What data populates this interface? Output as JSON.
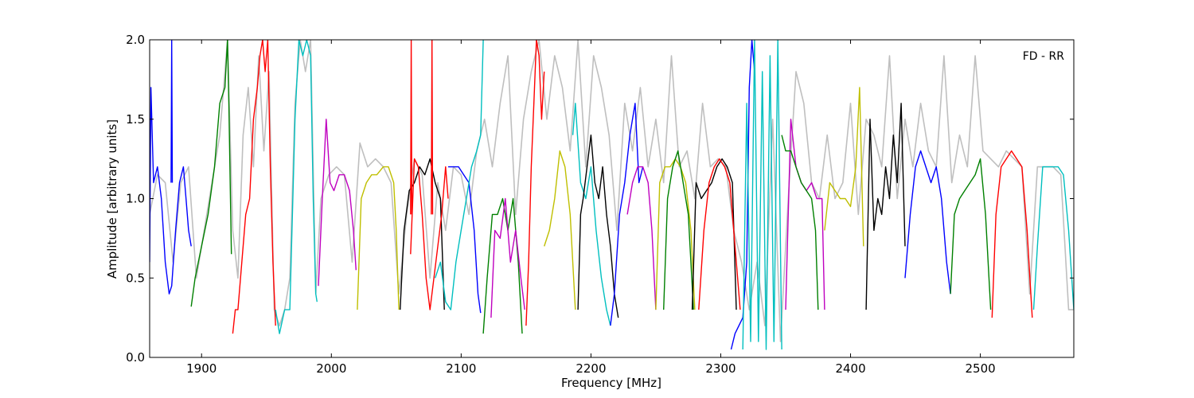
{
  "chart_data": {
    "type": "line",
    "title": "",
    "annotation": "FD - RR",
    "xlabel": "Frequency [MHz]",
    "ylabel": "Amplitude [arbitrary units]",
    "xlim": [
      1860,
      2572
    ],
    "ylim": [
      0.0,
      2.0
    ],
    "grid": false,
    "x_ticks": [
      1900,
      2000,
      2100,
      2200,
      2300,
      2400,
      2500
    ],
    "y_ticks": [
      0.0,
      0.5,
      1.0,
      1.5,
      2.0
    ],
    "x_tick_labels": [
      "1900",
      "2000",
      "2100",
      "2200",
      "2300",
      "2400",
      "2500"
    ],
    "y_tick_labels": [
      "0.0",
      "0.5",
      "1.0",
      "1.5",
      "2.0"
    ],
    "background_series": {
      "color": "#bfbfbf",
      "x": [
        1860,
        1866,
        1872,
        1878,
        1884,
        1890,
        1896,
        1902,
        1908,
        1914,
        1920,
        1924,
        1928,
        1932,
        1936,
        1940,
        1944,
        1948,
        1952,
        1956,
        1960,
        1964,
        1968,
        1972,
        1976,
        1980,
        1984,
        1988,
        1992,
        1998,
        2004,
        2010,
        2016,
        2022,
        2028,
        2034,
        2040,
        2046,
        2052,
        2058,
        2064,
        2070,
        2076,
        2082,
        2088,
        2094,
        2100,
        2106,
        2112,
        2118,
        2124,
        2130,
        2136,
        2142,
        2148,
        2154,
        2160,
        2166,
        2172,
        2178,
        2184,
        2190,
        2196,
        2202,
        2208,
        2214,
        2220,
        2226,
        2232,
        2238,
        2244,
        2250,
        2256,
        2262,
        2268,
        2274,
        2280,
        2286,
        2292,
        2298,
        2304,
        2310,
        2316,
        2322,
        2328,
        2334,
        2340,
        2346,
        2352,
        2358,
        2364,
        2370,
        2376,
        2382,
        2388,
        2394,
        2400,
        2406,
        2412,
        2418,
        2424,
        2430,
        2436,
        2442,
        2448,
        2454,
        2460,
        2466,
        2472,
        2478,
        2484,
        2490,
        2496,
        2502,
        2508,
        2514,
        2520,
        2526,
        2532,
        2538,
        2544,
        2550,
        2556,
        2562,
        2568,
        2572
      ],
      "y": [
        0.9,
        1.15,
        1.1,
        0.6,
        1.1,
        1.2,
        0.5,
        0.8,
        1.1,
        1.4,
        2.0,
        0.8,
        0.5,
        1.4,
        1.7,
        1.2,
        1.9,
        1.3,
        1.8,
        0.3,
        0.2,
        0.3,
        0.5,
        1.6,
        2.0,
        1.8,
        2.0,
        0.4,
        1.0,
        1.15,
        1.2,
        1.15,
        0.6,
        1.35,
        1.2,
        1.25,
        1.2,
        1.1,
        0.4,
        0.9,
        1.25,
        1.15,
        0.5,
        1.1,
        0.8,
        1.2,
        1.15,
        0.9,
        1.3,
        1.5,
        1.2,
        1.6,
        1.9,
        0.9,
        1.5,
        1.8,
        2.0,
        1.5,
        1.9,
        1.7,
        1.3,
        2.0,
        1.2,
        1.9,
        1.7,
        1.4,
        0.8,
        1.6,
        1.3,
        1.7,
        1.2,
        1.5,
        1.1,
        1.9,
        1.2,
        1.3,
        1.0,
        1.6,
        1.2,
        1.25,
        1.2,
        0.8,
        0.6,
        0.3,
        0.6,
        0.2,
        1.5,
        0.1,
        1.0,
        1.8,
        1.6,
        1.1,
        1.0,
        1.4,
        1.0,
        1.1,
        1.6,
        0.9,
        1.5,
        1.4,
        1.2,
        1.9,
        1.0,
        1.5,
        1.2,
        1.6,
        1.3,
        1.2,
        1.9,
        1.1,
        1.4,
        1.2,
        1.9,
        1.3,
        1.25,
        1.2,
        1.3,
        1.25,
        1.2,
        0.4,
        1.2,
        1.2,
        1.2,
        1.15,
        0.3,
        0.3
      ]
    },
    "series": [
      {
        "color": "#0000ff",
        "x": [
          1860,
          1861,
          1863,
          1866,
          1869,
          1872,
          1875,
          1877,
          1880,
          1883,
          1886,
          1888,
          1890,
          1892
        ],
        "y": [
          0.6,
          1.7,
          1.1,
          1.2,
          1.0,
          0.6,
          0.4,
          0.45,
          0.8,
          1.1,
          1.2,
          1.0,
          0.8,
          0.7
        ]
      },
      {
        "color": "#0000ff",
        "x": [
          1876.5,
          1877,
          1877.5
        ],
        "y": [
          1.1,
          2.0,
          1.1
        ]
      },
      {
        "color": "#008000",
        "x": [
          1892,
          1895,
          1900,
          1905,
          1910,
          1914,
          1918,
          1920,
          1921,
          1923
        ],
        "y": [
          0.32,
          0.5,
          0.7,
          0.9,
          1.2,
          1.6,
          1.7,
          2.0,
          1.6,
          0.65
        ]
      },
      {
        "color": "#ff0000",
        "x": [
          1924,
          1926,
          1928,
          1931,
          1934,
          1937,
          1940,
          1943,
          1945,
          1947,
          1949,
          1951,
          1953,
          1955,
          1957
        ],
        "y": [
          0.15,
          0.3,
          0.3,
          0.6,
          0.9,
          1.0,
          1.5,
          1.7,
          1.9,
          2.0,
          1.8,
          2.0,
          1.2,
          0.6,
          0.2
        ]
      },
      {
        "color": "#00bfbf",
        "x": [
          1957,
          1960,
          1964,
          1968,
          1972,
          1975,
          1978,
          1981,
          1984,
          1986,
          1988,
          1989
        ],
        "y": [
          0.3,
          0.15,
          0.3,
          0.3,
          1.5,
          2.0,
          1.9,
          2.0,
          1.9,
          1.0,
          0.4,
          0.35
        ]
      },
      {
        "color": "#bf00bf",
        "x": [
          1990,
          1993,
          1996,
          1999,
          2002,
          2006,
          2010,
          2014,
          2017,
          2019
        ],
        "y": [
          0.45,
          1.0,
          1.5,
          1.1,
          1.05,
          1.15,
          1.15,
          1.05,
          0.8,
          0.55
        ]
      },
      {
        "color": "#bfbf00",
        "x": [
          2020,
          2023,
          2027,
          2031,
          2035,
          2040,
          2044,
          2048,
          2050,
          2052
        ],
        "y": [
          0.3,
          1.0,
          1.1,
          1.15,
          1.15,
          1.2,
          1.2,
          1.1,
          0.8,
          0.3
        ]
      },
      {
        "color": "#000000",
        "x": [
          2053,
          2056,
          2060,
          2064,
          2068,
          2072,
          2076,
          2080,
          2084,
          2087
        ],
        "y": [
          0.3,
          0.8,
          1.05,
          1.1,
          1.2,
          1.15,
          1.25,
          1.1,
          1.0,
          0.3
        ]
      },
      {
        "color": "#ff0000",
        "x": [
          2061,
          2064,
          2067,
          2070,
          2073,
          2076,
          2079,
          2082,
          2085,
          2088,
          2090
        ],
        "y": [
          0.65,
          1.25,
          1.2,
          0.9,
          0.5,
          0.3,
          0.5,
          0.7,
          0.9,
          1.2,
          1.0
        ]
      },
      {
        "color": "#ff0000",
        "x": [
          2061,
          2061.5,
          2062
        ],
        "y": [
          0.9,
          2.0,
          0.9
        ]
      },
      {
        "color": "#ff0000",
        "x": [
          2077,
          2077.5,
          2078
        ],
        "y": [
          0.9,
          2.0,
          0.9
        ]
      },
      {
        "color": "#0000ff",
        "x": [
          2090,
          2094,
          2098,
          2102,
          2106,
          2110,
          2113,
          2115
        ],
        "y": [
          1.2,
          1.2,
          1.2,
          1.15,
          1.1,
          0.8,
          0.4,
          0.28
        ]
      },
      {
        "color": "#00bfbf",
        "x": [
          2080,
          2084,
          2088,
          2092,
          2096,
          2100,
          2104,
          2108,
          2112,
          2115,
          2117
        ],
        "y": [
          0.5,
          0.6,
          0.35,
          0.3,
          0.6,
          0.8,
          1.0,
          1.2,
          1.3,
          1.4,
          2.0
        ]
      },
      {
        "color": "#008000",
        "x": [
          2117,
          2120,
          2124,
          2128,
          2132,
          2136,
          2140,
          2144,
          2147
        ],
        "y": [
          0.15,
          0.5,
          0.9,
          0.9,
          1.0,
          0.8,
          1.0,
          0.6,
          0.15
        ]
      },
      {
        "color": "#bf00bf",
        "x": [
          2123,
          2126,
          2130,
          2134,
          2138,
          2142,
          2146,
          2149
        ],
        "y": [
          0.25,
          0.8,
          0.75,
          1.0,
          0.6,
          0.8,
          0.5,
          0.3
        ]
      },
      {
        "color": "#ff0000",
        "x": [
          2150,
          2152,
          2154,
          2156,
          2158,
          2160,
          2162,
          2164
        ],
        "y": [
          0.2,
          0.6,
          1.2,
          1.6,
          2.0,
          1.9,
          1.5,
          1.8
        ]
      },
      {
        "color": "#bfbf00",
        "x": [
          2164,
          2168,
          2172,
          2176,
          2180,
          2184,
          2188
        ],
        "y": [
          0.7,
          0.8,
          1.0,
          1.3,
          1.2,
          0.9,
          0.3
        ]
      },
      {
        "color": "#00bfbf",
        "x": [
          2186,
          2188,
          2192,
          2196,
          2200,
          2204,
          2208,
          2212,
          2215
        ],
        "y": [
          1.4,
          1.6,
          1.1,
          1.0,
          1.2,
          0.8,
          0.5,
          0.3,
          0.2
        ]
      },
      {
        "color": "#000000",
        "x": [
          2190,
          2192,
          2194,
          2197,
          2200,
          2203,
          2206,
          2209,
          2212,
          2215,
          2218,
          2221
        ],
        "y": [
          0.3,
          0.9,
          1.0,
          1.2,
          1.4,
          1.1,
          1.0,
          1.2,
          0.9,
          0.7,
          0.4,
          0.25
        ]
      },
      {
        "color": "#0000ff",
        "x": [
          2215,
          2218,
          2222,
          2226,
          2230,
          2234,
          2237,
          2240
        ],
        "y": [
          0.2,
          0.4,
          0.9,
          1.1,
          1.4,
          1.6,
          1.1,
          1.2
        ]
      },
      {
        "color": "#bf00bf",
        "x": [
          2228,
          2232,
          2236,
          2240,
          2244,
          2247,
          2250
        ],
        "y": [
          0.9,
          1.1,
          1.2,
          1.2,
          1.1,
          0.8,
          0.3
        ]
      },
      {
        "color": "#bfbf00",
        "x": [
          2250,
          2253,
          2257,
          2261,
          2265,
          2269,
          2273,
          2277,
          2280
        ],
        "y": [
          0.3,
          1.1,
          1.2,
          1.2,
          1.25,
          1.2,
          1.1,
          0.8,
          0.3
        ]
      },
      {
        "color": "#008000",
        "x": [
          2256,
          2259,
          2263,
          2267,
          2271,
          2275,
          2279
        ],
        "y": [
          0.3,
          1.0,
          1.2,
          1.3,
          1.1,
          0.9,
          0.3
        ]
      },
      {
        "color": "#000000",
        "x": [
          2278,
          2281,
          2285,
          2289,
          2293,
          2297,
          2301,
          2305,
          2309,
          2312
        ],
        "y": [
          0.3,
          1.1,
          1.0,
          1.05,
          1.1,
          1.2,
          1.25,
          1.2,
          1.1,
          0.3
        ]
      },
      {
        "color": "#ff0000",
        "x": [
          2283,
          2287,
          2291,
          2295,
          2299,
          2303,
          2307,
          2311,
          2315
        ],
        "y": [
          0.3,
          0.8,
          1.1,
          1.2,
          1.25,
          1.2,
          1.1,
          0.7,
          0.3
        ]
      },
      {
        "color": "#0000ff",
        "x": [
          2308,
          2311,
          2314,
          2317,
          2320,
          2322,
          2324,
          2326
        ],
        "y": [
          0.05,
          0.15,
          0.2,
          0.25,
          0.6,
          1.7,
          2.0,
          1.8
        ]
      },
      {
        "color": "#00bfbf",
        "x": [
          2317,
          2320,
          2323,
          2326,
          2329,
          2332,
          2335,
          2338,
          2341,
          2344,
          2347
        ],
        "y": [
          0.05,
          1.6,
          0.1,
          2.0,
          0.1,
          1.8,
          0.05,
          1.9,
          0.1,
          2.0,
          0.05
        ]
      },
      {
        "color": "#bf00bf",
        "x": [
          2350,
          2354,
          2358,
          2362,
          2366,
          2370,
          2374,
          2378,
          2380
        ],
        "y": [
          0.3,
          1.5,
          1.2,
          1.1,
          1.05,
          1.1,
          1.0,
          1.0,
          0.3
        ]
      },
      {
        "color": "#008000",
        "x": [
          2347,
          2350,
          2354,
          2358,
          2362,
          2366,
          2370,
          2373,
          2375
        ],
        "y": [
          1.4,
          1.3,
          1.3,
          1.2,
          1.1,
          1.05,
          1.0,
          0.8,
          0.3
        ]
      },
      {
        "color": "#bfbf00",
        "x": [
          2380,
          2384,
          2388,
          2392,
          2396,
          2400,
          2404,
          2407,
          2410
        ],
        "y": [
          0.8,
          1.1,
          1.05,
          1.0,
          1.0,
          0.95,
          1.2,
          1.7,
          0.7
        ]
      },
      {
        "color": "#000000",
        "x": [
          2412,
          2415,
          2418,
          2421,
          2424,
          2427,
          2430,
          2433,
          2436,
          2439,
          2442
        ],
        "y": [
          0.3,
          1.5,
          0.8,
          1.0,
          0.9,
          1.2,
          1.0,
          1.4,
          1.1,
          1.6,
          0.7
        ]
      },
      {
        "color": "#0000ff",
        "x": [
          2442,
          2446,
          2450,
          2454,
          2458,
          2462,
          2466,
          2470,
          2474,
          2477
        ],
        "y": [
          0.5,
          0.9,
          1.2,
          1.3,
          1.2,
          1.1,
          1.2,
          1.0,
          0.6,
          0.4
        ]
      },
      {
        "color": "#008000",
        "x": [
          2477,
          2480,
          2484,
          2488,
          2492,
          2496,
          2500,
          2504,
          2508
        ],
        "y": [
          0.4,
          0.9,
          1.0,
          1.05,
          1.1,
          1.15,
          1.25,
          0.9,
          0.3
        ]
      },
      {
        "color": "#ff0000",
        "x": [
          2509,
          2512,
          2516,
          2520,
          2524,
          2528,
          2532,
          2536,
          2540
        ],
        "y": [
          0.25,
          0.9,
          1.2,
          1.25,
          1.3,
          1.25,
          1.2,
          0.8,
          0.25
        ]
      },
      {
        "color": "#00bfbf",
        "x": [
          2541,
          2544,
          2548,
          2552,
          2556,
          2560,
          2564,
          2568,
          2572
        ],
        "y": [
          0.3,
          0.7,
          1.2,
          1.2,
          1.2,
          1.2,
          1.15,
          0.8,
          0.3
        ]
      }
    ]
  }
}
